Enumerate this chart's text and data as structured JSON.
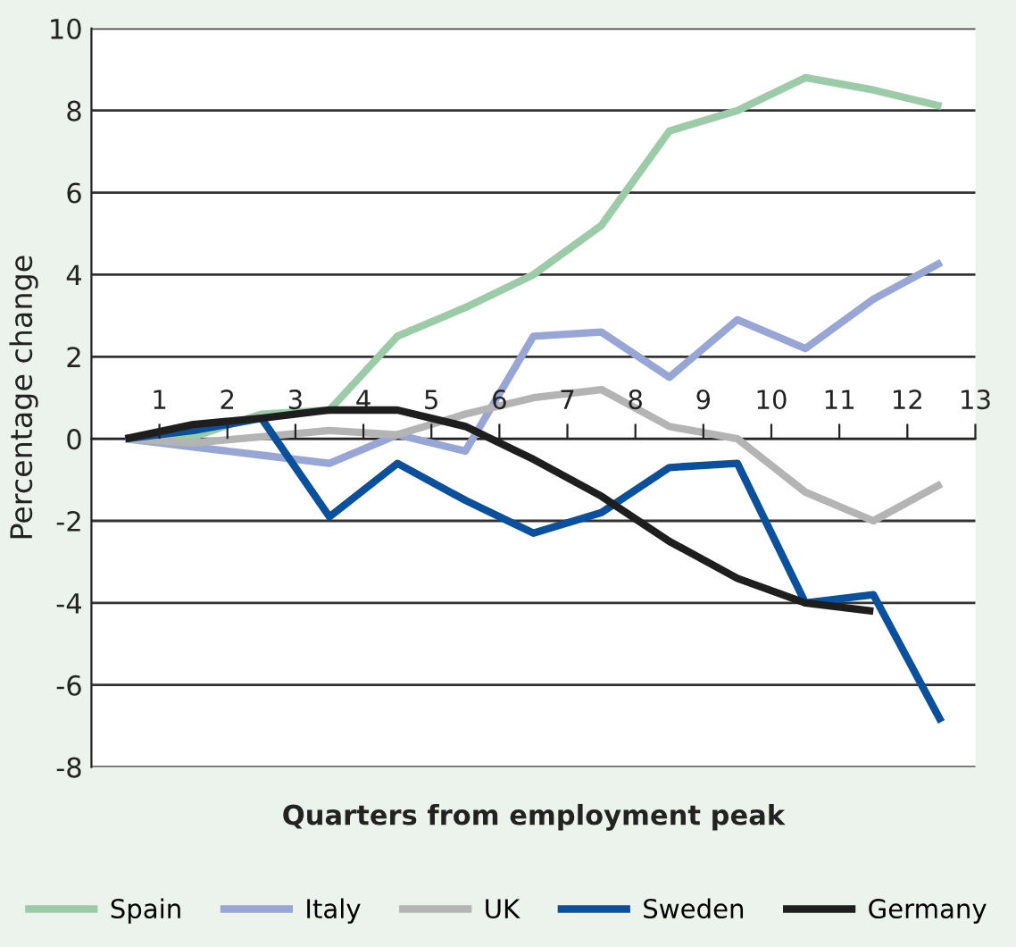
{
  "chart_data": {
    "type": "line",
    "xlabel": "Quarters from employment peak",
    "ylabel": "Percentage change",
    "x": [
      0.5,
      1.5,
      2.5,
      3.5,
      4.5,
      5.5,
      6.5,
      7.5,
      8.5,
      9.5,
      10.5,
      11.5,
      12.5
    ],
    "xlim": [
      0,
      13
    ],
    "xticks": [
      1,
      2,
      3,
      4,
      5,
      6,
      7,
      8,
      9,
      10,
      11,
      12,
      13
    ],
    "ylim": [
      -8,
      10
    ],
    "yticks": [
      -8,
      -6,
      -4,
      -2,
      0,
      2,
      4,
      6,
      8,
      10
    ],
    "grid": "y",
    "legend": "bottom",
    "line_style": "solid",
    "marker": "none",
    "series": [
      {
        "name": "Spain",
        "color": "#9ccba8",
        "values": [
          0,
          0.05,
          0.6,
          0.7,
          2.5,
          3.2,
          4.0,
          5.2,
          7.5,
          8.0,
          8.8,
          8.5,
          8.1
        ]
      },
      {
        "name": "Italy",
        "color": "#98a6d6",
        "values": [
          0,
          -0.2,
          -0.4,
          -0.6,
          0.1,
          -0.3,
          2.5,
          2.6,
          1.5,
          2.9,
          2.2,
          3.4,
          4.3
        ]
      },
      {
        "name": "UK",
        "color": "#b4b4b4",
        "values": [
          0,
          -0.1,
          0.05,
          0.2,
          0.1,
          0.6,
          1.0,
          1.2,
          0.3,
          0.0,
          -1.3,
          -2.0,
          -1.1
        ]
      },
      {
        "name": "Sweden",
        "color": "#0a509c",
        "values": [
          0,
          0.2,
          0.5,
          -1.9,
          -0.6,
          -1.5,
          -2.3,
          -1.8,
          -0.7,
          -0.6,
          -4.0,
          -3.8,
          -6.9
        ]
      },
      {
        "name": "Germany",
        "color": "#1e1e1e",
        "values": [
          0,
          0.35,
          0.5,
          0.7,
          0.7,
          0.3,
          -0.5,
          -1.4,
          -2.5,
          -3.4,
          -4.0,
          -4.2,
          null
        ]
      }
    ]
  }
}
